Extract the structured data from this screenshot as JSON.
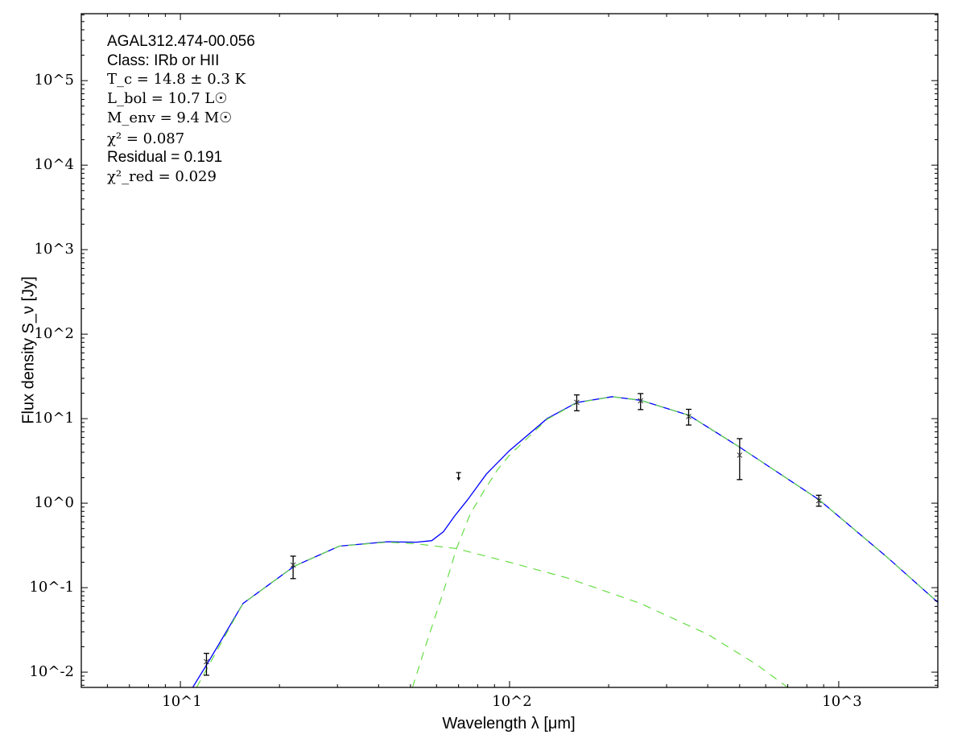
{
  "chart_data": {
    "type": "line",
    "xscale": "log",
    "yscale": "log",
    "xlabel": "Wavelength λ [μm]",
    "ylabel": "Flux density S_ν [Jy]",
    "xlim": [
      5,
      2000
    ],
    "ylim": [
      0.0066,
      620000
    ],
    "grid": false,
    "x_ticks": [
      "10^1",
      "10^2",
      "10^3"
    ],
    "y_ticks": [
      "10^-2",
      "10^-1",
      "10^0",
      "10^1",
      "10^2",
      "10^3",
      "10^4",
      "10^5"
    ],
    "annotations": {
      "source": "AGAL312.474-00.056",
      "class": "Class: IRb or HII",
      "tc": "T_c = 14.8 ± 0.3 K",
      "lbol": "L_bol = 10.7 L☉",
      "menv": "M_env = 9.4 M☉",
      "chi2": "χ² = 0.087",
      "residual": "Residual = 0.191",
      "chi2red": "χ²_red = 0.029"
    },
    "measurements": [
      {
        "x": 12,
        "y": 0.0133,
        "yerr_low": 0.0092,
        "yerr_high": 0.0167
      },
      {
        "x": 22,
        "y": 0.185,
        "yerr_low": 0.128,
        "yerr_high": 0.236
      },
      {
        "x": 160,
        "y": 15.6,
        "yerr_low": 12.4,
        "yerr_high": 19.1
      },
      {
        "x": 250,
        "y": 16.3,
        "yerr_low": 12.8,
        "yerr_high": 19.8
      },
      {
        "x": 350,
        "y": 10.6,
        "yerr_low": 8.4,
        "yerr_high": 12.9
      },
      {
        "x": 500,
        "y": 3.7,
        "yerr_low": 1.9,
        "yerr_high": 5.8
      },
      {
        "x": 870,
        "y": 1.07,
        "yerr_low": 0.92,
        "yerr_high": 1.24
      }
    ],
    "upper_limits": [
      {
        "x": 70,
        "y": 2.3
      }
    ],
    "series": [
      {
        "style": "solid",
        "color": "#0000ff",
        "x": [
          10.9,
          12.2,
          15.5,
          22.2,
          30.4,
          42.6,
          52,
          58,
          63,
          68,
          74.6,
          85,
          100,
          130,
          160,
          205,
          250,
          350,
          500,
          870,
          1385,
          2000
        ],
        "y": [
          0.0066,
          0.0135,
          0.065,
          0.18,
          0.31,
          0.35,
          0.345,
          0.36,
          0.46,
          0.7,
          1.1,
          2.2,
          4.2,
          10,
          15.5,
          18.2,
          16.5,
          11,
          4.6,
          1.1,
          0.24,
          0.067
        ]
      },
      {
        "style": "dashed",
        "color": "#66dd44",
        "x": [
          50.7,
          55,
          58.8,
          63,
          69,
          76,
          83.6,
          92,
          100,
          130,
          160,
          205,
          250,
          350,
          500,
          870,
          1385,
          2000
        ],
        "y": [
          0.0066,
          0.018,
          0.04,
          0.09,
          0.29,
          0.75,
          1.4,
          2.5,
          3.7,
          9.8,
          15.4,
          18.2,
          16.5,
          11,
          4.6,
          1.1,
          0.24,
          0.067
        ]
      },
      {
        "style": "dashed",
        "color": "#66dd44",
        "x": [
          11.2,
          15.5,
          22.2,
          30.4,
          42.6,
          52,
          69,
          100,
          150,
          250,
          400,
          560,
          700
        ],
        "y": [
          0.0066,
          0.065,
          0.18,
          0.31,
          0.345,
          0.33,
          0.29,
          0.2,
          0.13,
          0.065,
          0.028,
          0.0125,
          0.0066
        ]
      }
    ]
  }
}
